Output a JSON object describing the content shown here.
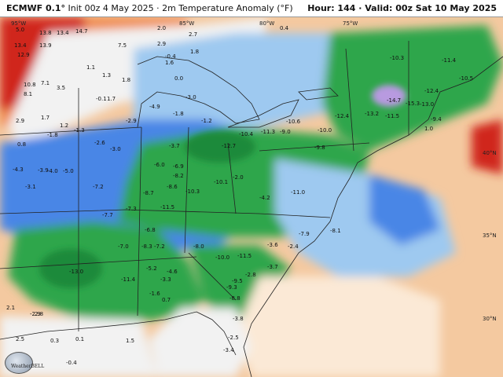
{
  "header": {
    "model": "ECMWF 0.1°",
    "init": "Init 00z 4 May 2025",
    "field": "2m Temperature Anomaly (°F)",
    "hour": "Hour: 144",
    "valid": "Valid: 00z Sat 10 May 2025"
  },
  "logo_text": "WeatherBELL",
  "colors": {
    "ocean_warm": "#f4c9a0",
    "ocean_light": "#fbe9d6",
    "warm_red": "#d0281d",
    "warm_orange": "#f08a4b",
    "neutral": "#f2f2f2",
    "cool_light_blue": "#9ec9f0",
    "cool_blue": "#4a86e6",
    "cool_green": "#2fa64b",
    "cool_dark_green": "#1f8a3a",
    "cool_purple": "#b89ae0"
  },
  "coords": {
    "lon_95": "95°W",
    "lon_85": "85°W",
    "lon_80": "80°W",
    "lon_75": "75°W",
    "lat_40": "40°N",
    "lat_35": "35°N",
    "lat_30": "30°N"
  },
  "values": [
    {
      "t": "5.0"
    },
    {
      "t": "13.8"
    },
    {
      "t": "13.4"
    },
    {
      "t": "14.7"
    },
    {
      "t": "2.0"
    },
    {
      "t": "2.7"
    },
    {
      "t": "0.4"
    },
    {
      "t": "13.4"
    },
    {
      "t": "13.9"
    },
    {
      "t": "12.9"
    },
    {
      "t": "7.5"
    },
    {
      "t": "2.9"
    },
    {
      "t": "-0.4"
    },
    {
      "t": "1.8"
    },
    {
      "t": "1.1"
    },
    {
      "t": "1.3"
    },
    {
      "t": "1.8"
    },
    {
      "t": "0.0"
    },
    {
      "t": "1.6"
    },
    {
      "t": "10.8"
    },
    {
      "t": "7.1"
    },
    {
      "t": "3.5"
    },
    {
      "t": "8.1"
    },
    {
      "t": "-0.1"
    },
    {
      "t": "1.7"
    },
    {
      "t": "-4.9"
    },
    {
      "t": "-1.8"
    },
    {
      "t": "-3.0"
    },
    {
      "t": "2.9"
    },
    {
      "t": "1.7"
    },
    {
      "t": "1.2"
    },
    {
      "t": "-2.9"
    },
    {
      "t": "-1.2"
    },
    {
      "t": "0.8"
    },
    {
      "t": "-1.8"
    },
    {
      "t": "-1.3"
    },
    {
      "t": "-2.6"
    },
    {
      "t": "-3.0"
    },
    {
      "t": "-3.7"
    },
    {
      "t": "-6.9"
    },
    {
      "t": "-12.7"
    },
    {
      "t": "-10.4"
    },
    {
      "t": "-11.3"
    },
    {
      "t": "-9.0"
    },
    {
      "t": "-9.8"
    },
    {
      "t": "-10.0"
    },
    {
      "t": "-10.6"
    },
    {
      "t": "-12.4"
    },
    {
      "t": "-13.2"
    },
    {
      "t": "-14.7"
    },
    {
      "t": "-11.5"
    },
    {
      "t": "-15.3"
    },
    {
      "t": "-13.0"
    },
    {
      "t": "-12.4"
    },
    {
      "t": "-10.3"
    },
    {
      "t": "-11.4"
    },
    {
      "t": "-10.5"
    },
    {
      "t": "-9.4"
    },
    {
      "t": "-4.3"
    },
    {
      "t": "-3.9"
    },
    {
      "t": "-4.0"
    },
    {
      "t": "-5.0"
    },
    {
      "t": "-3.1"
    },
    {
      "t": "-7.2"
    },
    {
      "t": "-6.0"
    },
    {
      "t": "-8.7"
    },
    {
      "t": "-8.6"
    },
    {
      "t": "-10.3"
    },
    {
      "t": "-10.1"
    },
    {
      "t": "-11.0"
    },
    {
      "t": "-8.2"
    },
    {
      "t": "-7.7"
    },
    {
      "t": "-7.3"
    },
    {
      "t": "-11.5"
    },
    {
      "t": "-7.9"
    },
    {
      "t": "-6.8"
    },
    {
      "t": "-8.3"
    },
    {
      "t": "-7.2"
    },
    {
      "t": "-7.0"
    },
    {
      "t": "-8.0"
    },
    {
      "t": "-10.0"
    },
    {
      "t": "-11.5"
    },
    {
      "t": "-13.0"
    },
    {
      "t": "-5.2"
    },
    {
      "t": "-4.6"
    },
    {
      "t": "-3.3"
    },
    {
      "t": "-11.4"
    },
    {
      "t": "-9.5"
    },
    {
      "t": "-3.7"
    },
    {
      "t": "-8.1"
    },
    {
      "t": "-2.4"
    },
    {
      "t": "-2.9"
    },
    {
      "t": "2.8"
    },
    {
      "t": "2.5"
    },
    {
      "t": "0.3"
    },
    {
      "t": "0.1"
    },
    {
      "t": "1.5"
    },
    {
      "t": "-0.4"
    },
    {
      "t": "2.1"
    },
    {
      "t": "-1.6"
    },
    {
      "t": "0.7"
    },
    {
      "t": "-3.8"
    },
    {
      "t": "-2.5"
    },
    {
      "t": "-3.4"
    },
    {
      "t": "-9.3"
    },
    {
      "t": "-8.8"
    },
    {
      "t": "-2.8"
    },
    {
      "t": "-3.6"
    },
    {
      "t": "-4.2"
    },
    {
      "t": "-2.0"
    },
    {
      "t": "1.0"
    }
  ]
}
